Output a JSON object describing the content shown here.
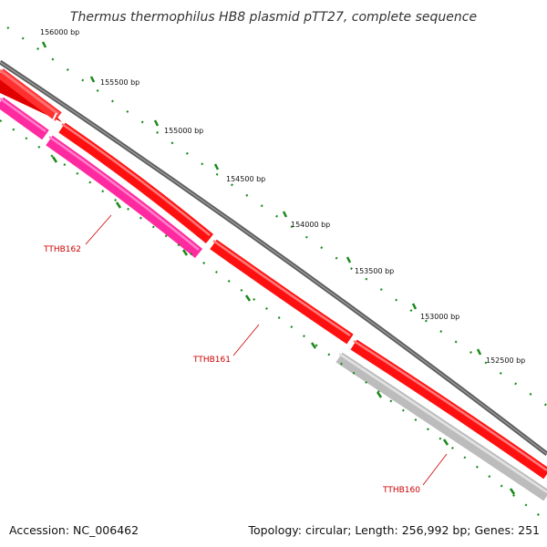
{
  "map": {
    "title": "Thermus thermophilus HB8 plasmid pTT27, complete sequence",
    "accession_text": "Accession: NC_006462",
    "summary_text": "Topology: circular; Length: 256,992 bp; Genes: 251"
  },
  "ticks": [
    {
      "label": "156000 bp"
    },
    {
      "label": "155500 bp"
    },
    {
      "label": "155000 bp"
    },
    {
      "label": "154500 bp"
    },
    {
      "label": "154000 bp"
    },
    {
      "label": "153500 bp"
    },
    {
      "label": "153000 bp"
    },
    {
      "label": "152500 bp"
    }
  ],
  "genes": [
    {
      "name": "TTHB162",
      "color": "#ff2aa0"
    },
    {
      "name": "TTHB161",
      "color": "#ff1010"
    },
    {
      "name": "TTHB160",
      "color": "#bcbcbc"
    }
  ],
  "colors": {
    "backbone": "#6e6e6e",
    "forward_track": "#ff0000",
    "tick_marks": "#1a8a1a",
    "label_text": "#cc0000"
  }
}
